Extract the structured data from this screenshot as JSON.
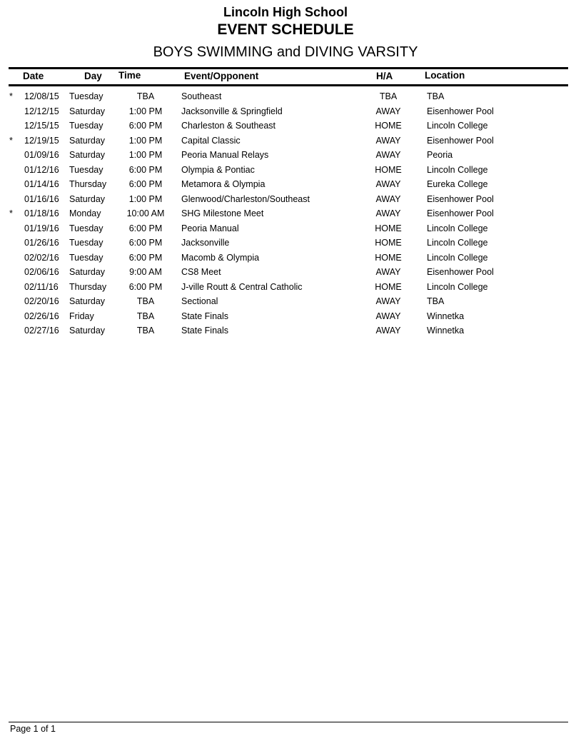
{
  "header": {
    "school": "Lincoln High School",
    "title": "EVENT SCHEDULE",
    "subtitle": "BOYS SWIMMING and DIVING VARSITY"
  },
  "columns": {
    "date": "Date",
    "day": "Day",
    "time": "Time",
    "event": "Event/Opponent",
    "ha": "H/A",
    "location": "Location"
  },
  "rows": [
    {
      "mark": "*",
      "date": "12/08/15",
      "day": "Tuesday",
      "time": "TBA",
      "event": "Southeast",
      "ha": "TBA",
      "location": "TBA"
    },
    {
      "mark": "",
      "date": "12/12/15",
      "day": "Saturday",
      "time": "1:00 PM",
      "event": "Jacksonville & Springfield",
      "ha": "AWAY",
      "location": "Eisenhower Pool"
    },
    {
      "mark": "",
      "date": "12/15/15",
      "day": "Tuesday",
      "time": "6:00 PM",
      "event": "Charleston & Southeast",
      "ha": "HOME",
      "location": "Lincoln College"
    },
    {
      "mark": "*",
      "date": "12/19/15",
      "day": "Saturday",
      "time": "1:00 PM",
      "event": "Capital Classic",
      "ha": "AWAY",
      "location": "Eisenhower Pool"
    },
    {
      "mark": "",
      "date": "01/09/16",
      "day": "Saturday",
      "time": "1:00 PM",
      "event": "Peoria Manual Relays",
      "ha": "AWAY",
      "location": "Peoria"
    },
    {
      "mark": "",
      "date": "01/12/16",
      "day": "Tuesday",
      "time": "6:00 PM",
      "event": "Olympia & Pontiac",
      "ha": "HOME",
      "location": "Lincoln College"
    },
    {
      "mark": "",
      "date": "01/14/16",
      "day": "Thursday",
      "time": "6:00 PM",
      "event": "Metamora & Olympia",
      "ha": "AWAY",
      "location": "Eureka College"
    },
    {
      "mark": "",
      "date": "01/16/16",
      "day": "Saturday",
      "time": "1:00 PM",
      "event": "Glenwood/Charleston/Southeast",
      "ha": "AWAY",
      "location": "Eisenhower Pool"
    },
    {
      "mark": "*",
      "date": "01/18/16",
      "day": "Monday",
      "time": "10:00 AM",
      "event": "SHG Milestone Meet",
      "ha": "AWAY",
      "location": "Eisenhower Pool"
    },
    {
      "mark": "",
      "date": "01/19/16",
      "day": "Tuesday",
      "time": "6:00 PM",
      "event": "Peoria Manual",
      "ha": "HOME",
      "location": "Lincoln College"
    },
    {
      "mark": "",
      "date": "01/26/16",
      "day": "Tuesday",
      "time": "6:00 PM",
      "event": "Jacksonville",
      "ha": "HOME",
      "location": "Lincoln College"
    },
    {
      "mark": "",
      "date": "02/02/16",
      "day": "Tuesday",
      "time": "6:00 PM",
      "event": "Macomb & Olympia",
      "ha": "HOME",
      "location": "Lincoln College"
    },
    {
      "mark": "",
      "date": "02/06/16",
      "day": "Saturday",
      "time": "9:00 AM",
      "event": "CS8 Meet",
      "ha": "AWAY",
      "location": "Eisenhower Pool"
    },
    {
      "mark": "",
      "date": "02/11/16",
      "day": "Thursday",
      "time": "6:00 PM",
      "event": "J-ville Routt & Central Catholic",
      "ha": "HOME",
      "location": "Lincoln College"
    },
    {
      "mark": "",
      "date": "02/20/16",
      "day": "Saturday",
      "time": "TBA",
      "event": "Sectional",
      "ha": "AWAY",
      "location": "TBA"
    },
    {
      "mark": "",
      "date": "02/26/16",
      "day": "Friday",
      "time": "TBA",
      "event": "State Finals",
      "ha": "AWAY",
      "location": "Winnetka"
    },
    {
      "mark": "",
      "date": "02/27/16",
      "day": "Saturday",
      "time": "TBA",
      "event": "State Finals",
      "ha": "AWAY",
      "location": "Winnetka"
    }
  ],
  "footer": {
    "page": "Page 1 of 1"
  }
}
